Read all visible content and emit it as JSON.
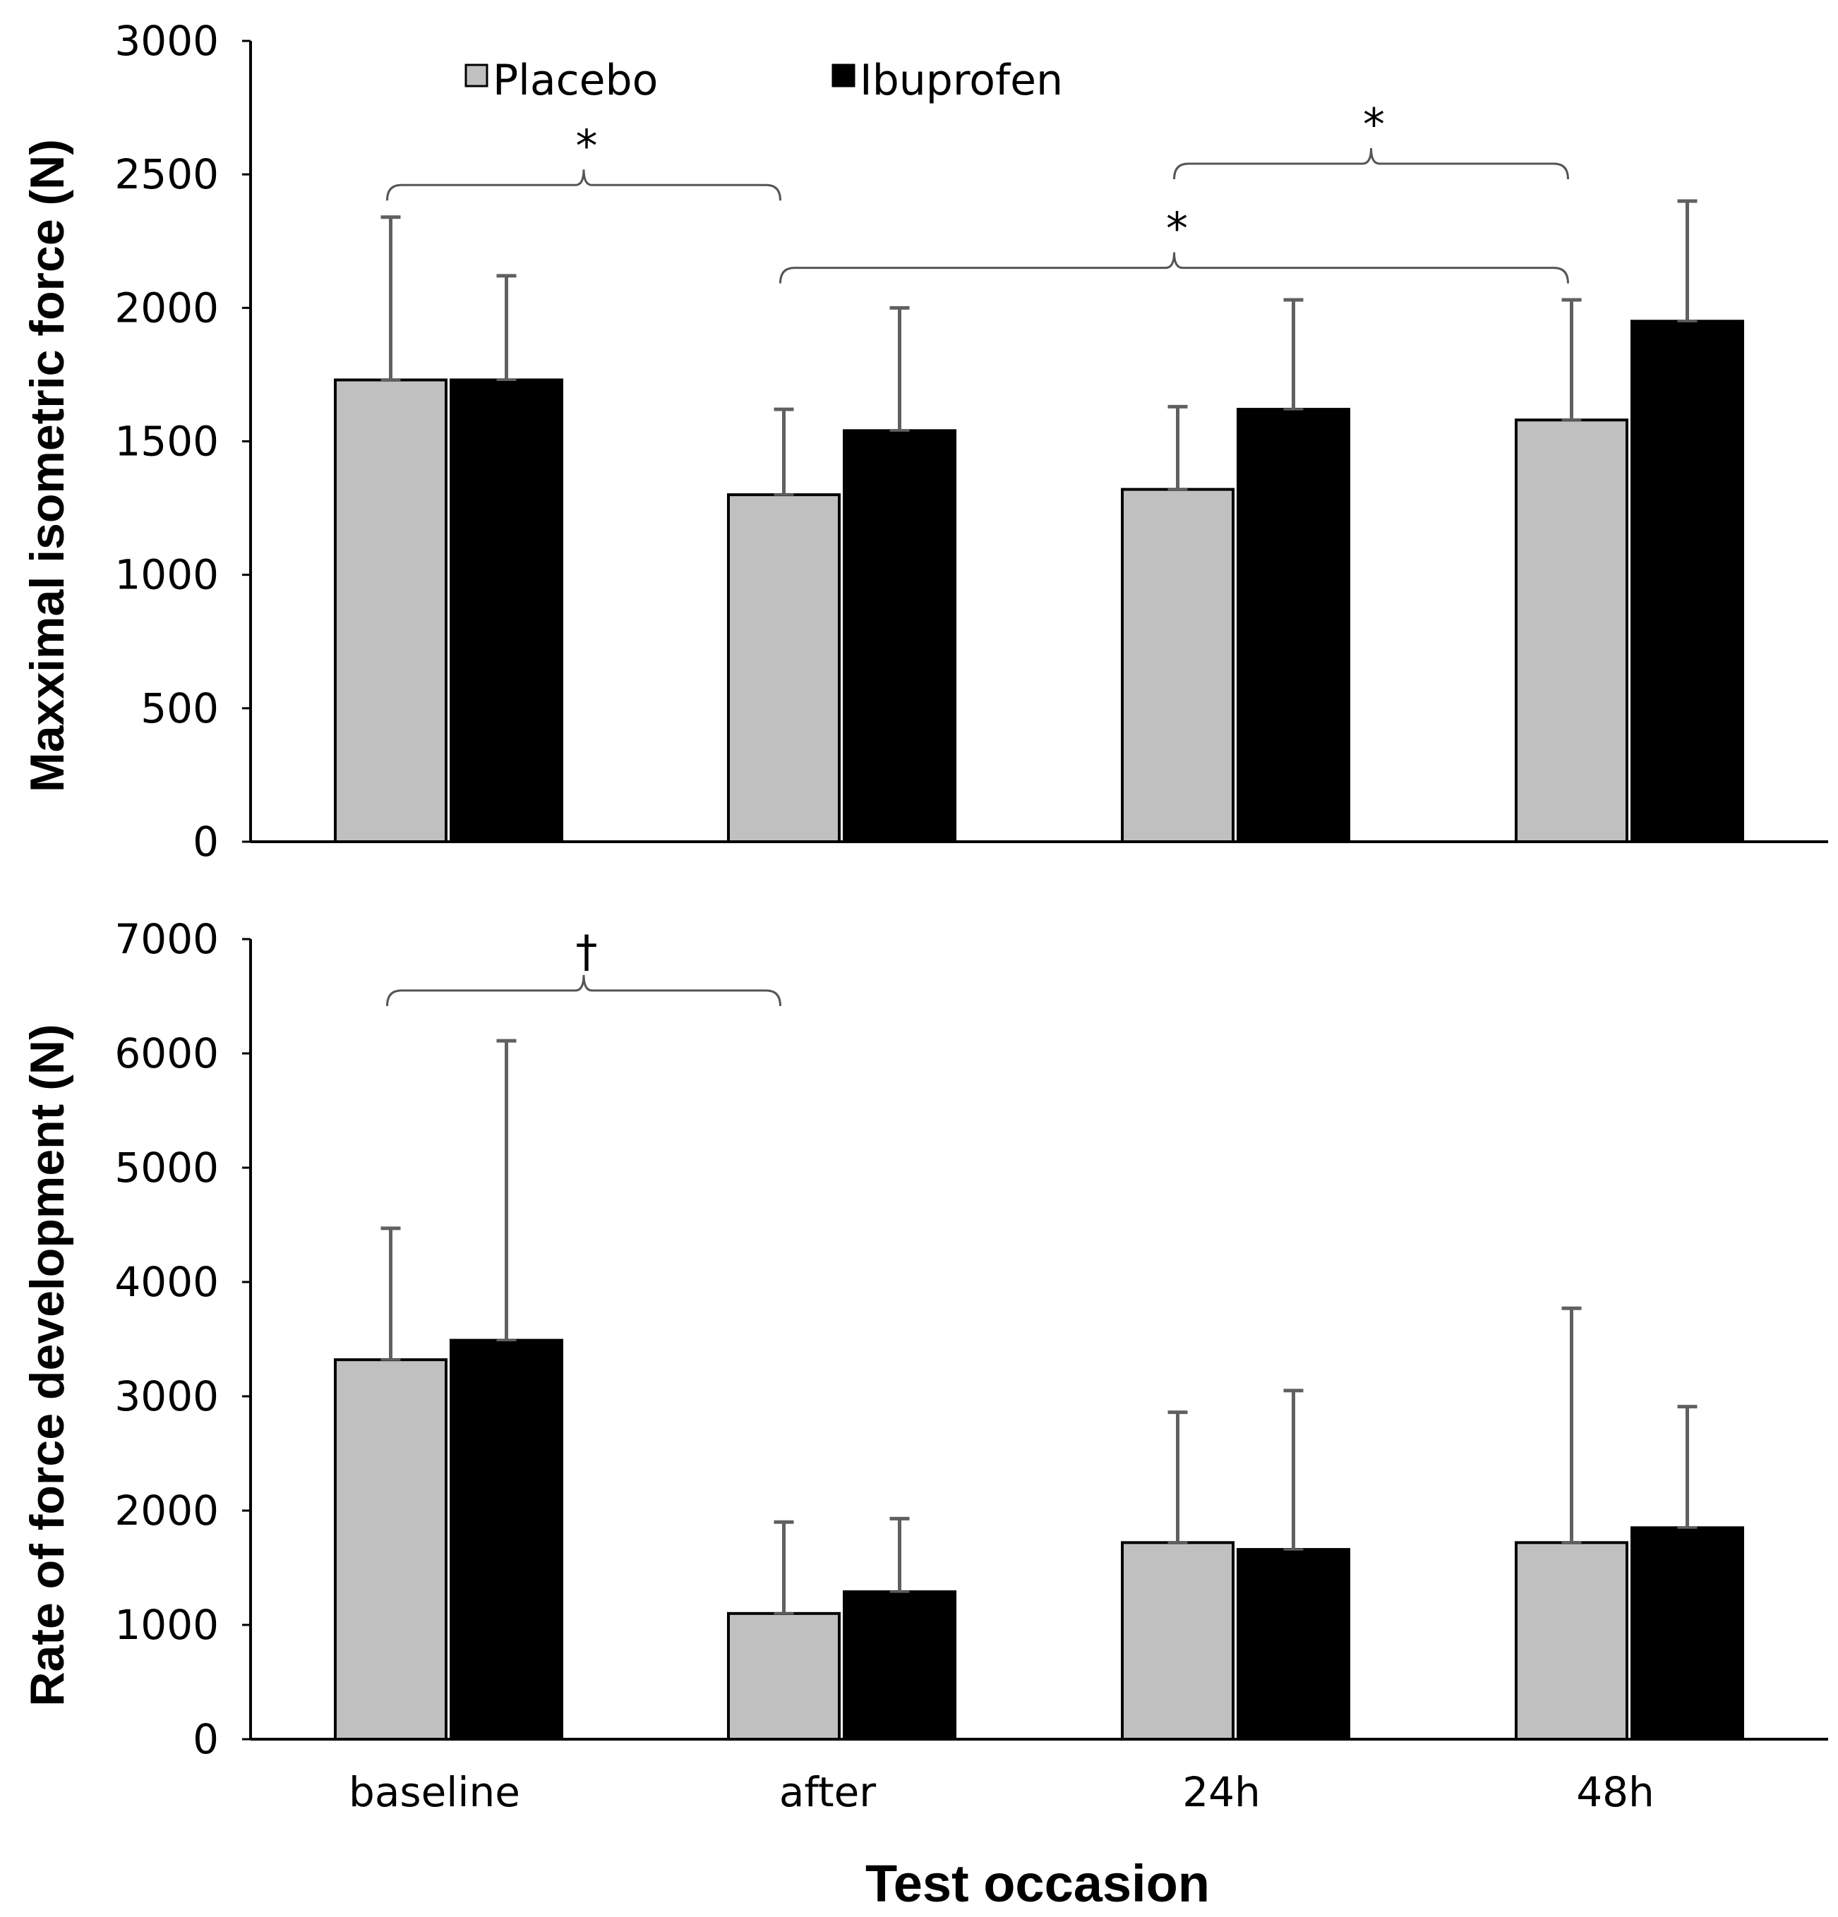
{
  "chart_data": [
    {
      "type": "bar",
      "ylabel": "Maxximal isometric force (N)",
      "xlabel": "",
      "categories": [
        "baseline",
        "after",
        "24h",
        "48h"
      ],
      "ylim": [
        0,
        3000
      ],
      "yticks": [
        0,
        500,
        1000,
        1500,
        2000,
        2500,
        3000
      ],
      "series": [
        {
          "name": "Placebo",
          "color": "#c0c0c0",
          "values": [
            1730,
            1300,
            1320,
            1580
          ],
          "errors": [
            610,
            320,
            310,
            450
          ]
        },
        {
          "name": "Ibuprofen",
          "color": "#000000",
          "values": [
            1730,
            1540,
            1620,
            1950
          ],
          "errors": [
            390,
            460,
            410,
            450
          ]
        }
      ],
      "legend": {
        "position": "top-left",
        "entries": [
          "Placebo",
          "Ibuprofen"
        ]
      },
      "annotations": [
        {
          "symbol": "*",
          "from": "baseline",
          "to": "after",
          "level": 2460
        },
        {
          "symbol": "*",
          "from": "after",
          "to": "48h",
          "level": 2150
        },
        {
          "symbol": "*",
          "from": "24h",
          "to": "48h",
          "level": 2540
        }
      ]
    },
    {
      "type": "bar",
      "ylabel": "Rate of force development (N)",
      "xlabel": "Test occasion",
      "categories": [
        "baseline",
        "after",
        "24h",
        "48h"
      ],
      "ylim": [
        0,
        7000
      ],
      "yticks": [
        0,
        1000,
        2000,
        3000,
        4000,
        5000,
        6000,
        7000
      ],
      "series": [
        {
          "name": "Placebo",
          "color": "#c0c0c0",
          "values": [
            3320,
            1100,
            1720,
            1720
          ],
          "errors": [
            1150,
            800,
            1140,
            2050
          ]
        },
        {
          "name": "Ibuprofen",
          "color": "#000000",
          "values": [
            3490,
            1290,
            1660,
            1850
          ],
          "errors": [
            2620,
            640,
            1390,
            1060
          ]
        }
      ],
      "annotations": [
        {
          "symbol": "†",
          "from": "baseline",
          "to": "after",
          "level": 6550
        }
      ]
    }
  ]
}
